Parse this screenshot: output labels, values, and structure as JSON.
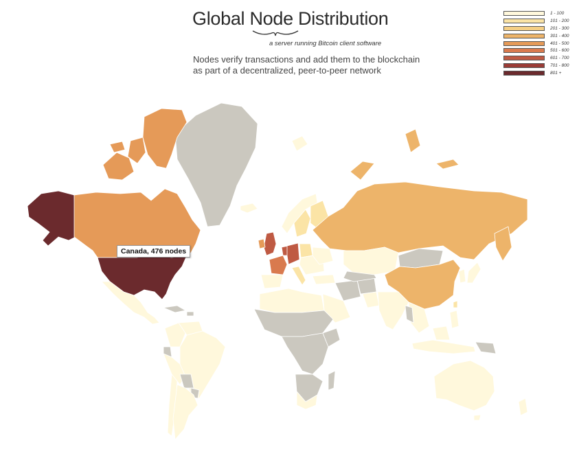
{
  "header": {
    "title": "Global Node Distribution",
    "subtitle": "a server running Bitcoin client software",
    "description_line1": "Nodes verify transactions and add them to the blockchain",
    "description_line2": "as part of a decentralized, peer-to-peer network"
  },
  "legend": [
    {
      "label": "1 - 100",
      "color": "#fff8dc"
    },
    {
      "label": "101 - 200",
      "color": "#fbe4a6"
    },
    {
      "label": "201 - 300",
      "color": "#f5cf85"
    },
    {
      "label": "301 - 400",
      "color": "#edb46a"
    },
    {
      "label": "401 - 500",
      "color": "#e59a58"
    },
    {
      "label": "501 - 600",
      "color": "#d97a4e"
    },
    {
      "label": "601 - 700",
      "color": "#bf5a43"
    },
    {
      "label": "701 - 800",
      "color": "#9a3c36"
    },
    {
      "label": "801 +",
      "color": "#6b2a2d"
    }
  ],
  "colors": {
    "no_data": "#cbc8bf"
  },
  "tooltip": {
    "text": "Canada, 476 nodes"
  },
  "chart_data": {
    "type": "choropleth",
    "legend_bins": [
      "1 - 100",
      "101 - 200",
      "201 - 300",
      "301 - 400",
      "401 - 500",
      "501 - 600",
      "601 - 700",
      "701 - 800",
      "801 +"
    ],
    "tooltip": {
      "country": "Canada",
      "nodes": 476
    }
  }
}
